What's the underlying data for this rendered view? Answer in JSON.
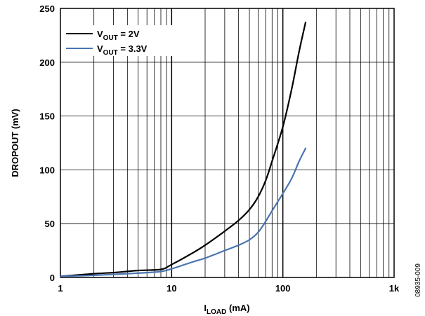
{
  "chart_data": {
    "type": "line",
    "title": "",
    "x_scale": "log",
    "xlim": [
      1,
      1000
    ],
    "ylim": [
      0,
      250
    ],
    "grid": true,
    "legend_position": "top-left",
    "xlabel": {
      "main": "I",
      "sub": "LOAD",
      "unit": " (mA)"
    },
    "ylabel": "DROPOUT (mV)",
    "x_ticks": [
      {
        "value": 1,
        "label": "1"
      },
      {
        "value": 10,
        "label": "10"
      },
      {
        "value": 100,
        "label": "100"
      },
      {
        "value": 1000,
        "label": "1k"
      }
    ],
    "y_ticks": [
      {
        "value": 0,
        "label": "0"
      },
      {
        "value": 50,
        "label": "50"
      },
      {
        "value": 100,
        "label": "100"
      },
      {
        "value": 150,
        "label": "150"
      },
      {
        "value": 200,
        "label": "200"
      },
      {
        "value": 250,
        "label": "250"
      }
    ],
    "series": [
      {
        "label_main": "V",
        "label_sub": "OUT",
        "label_rest": " = 2V",
        "color": "#000000",
        "points": [
          [
            1,
            1
          ],
          [
            2,
            3.5
          ],
          [
            3,
            4.5
          ],
          [
            5,
            6.5
          ],
          [
            8,
            7.5
          ],
          [
            10,
            12
          ],
          [
            15,
            22
          ],
          [
            20,
            30
          ],
          [
            30,
            43
          ],
          [
            40,
            53
          ],
          [
            50,
            63
          ],
          [
            60,
            75
          ],
          [
            70,
            90
          ],
          [
            80,
            108
          ],
          [
            100,
            140
          ],
          [
            120,
            175
          ],
          [
            140,
            210
          ],
          [
            160,
            237
          ]
        ]
      },
      {
        "label_main": "V",
        "label_sub": "OUT",
        "label_rest": " = 3.3V",
        "color": "#4a74b0",
        "points": [
          [
            1,
            1
          ],
          [
            2,
            2
          ],
          [
            4,
            3.5
          ],
          [
            6,
            4.5
          ],
          [
            8,
            5.5
          ],
          [
            10,
            8
          ],
          [
            15,
            14
          ],
          [
            20,
            18
          ],
          [
            30,
            25
          ],
          [
            40,
            30
          ],
          [
            50,
            35
          ],
          [
            60,
            42
          ],
          [
            70,
            52
          ],
          [
            80,
            62
          ],
          [
            100,
            78
          ],
          [
            120,
            92
          ],
          [
            140,
            108
          ],
          [
            160,
            120
          ]
        ]
      }
    ]
  },
  "figure_id": "08935-009"
}
